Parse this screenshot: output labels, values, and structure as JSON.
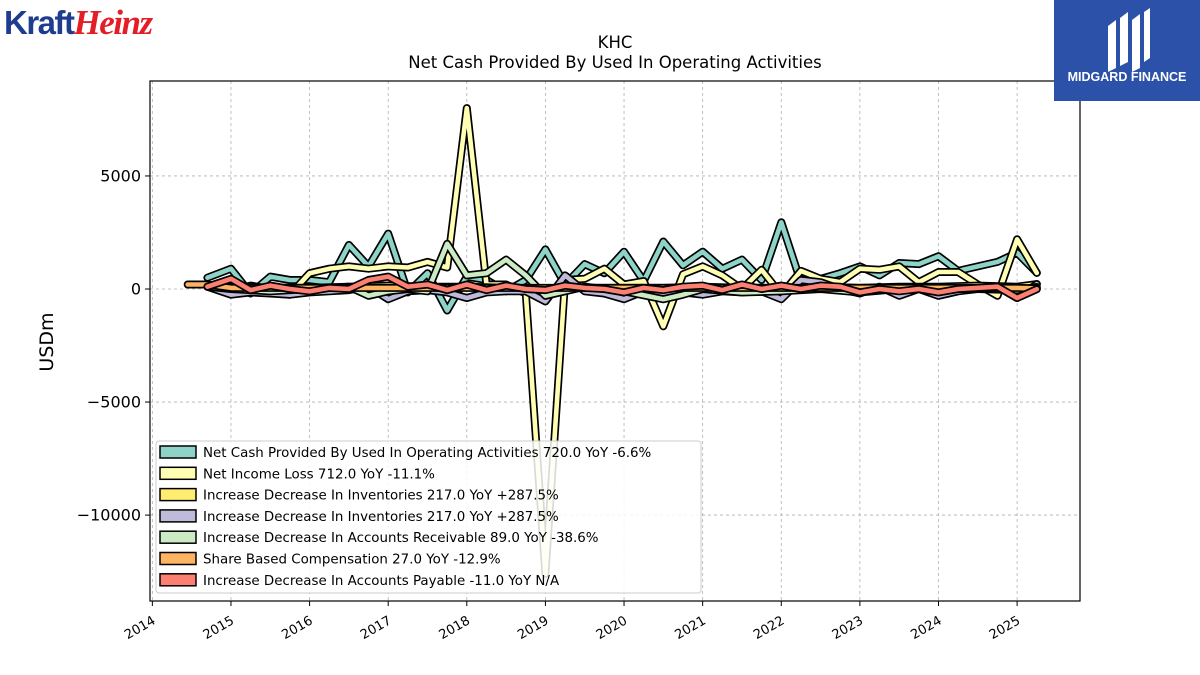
{
  "logos": {
    "left": {
      "part1": "Kraft",
      "part2": "Heinz"
    },
    "right": {
      "name": "MIDGARD FINANCE"
    }
  },
  "colors": {
    "kraft_blue": "#1e3d8f",
    "heinz_red": "#e41e26",
    "midgard_blue": "#2b52a8"
  },
  "chart_data": {
    "type": "line",
    "title": "KHC",
    "subtitle": "Net Cash Provided By Used In Operating Activities",
    "xlabel": "",
    "ylabel": "USDm",
    "xlim": [
      2013.97,
      2025.8
    ],
    "ylim": [
      -13800,
      9200
    ],
    "yticks": [
      -10000,
      -5000,
      0,
      5000
    ],
    "ytick_labels": [
      "−10000",
      "−5000",
      "0",
      "5000"
    ],
    "xticks": [
      2014,
      2015,
      2016,
      2017,
      2018,
      2019,
      2020,
      2021,
      2022,
      2023,
      2024,
      2025
    ],
    "xtick_labels": [
      "2014",
      "2015",
      "2016",
      "2017",
      "2018",
      "2019",
      "2020",
      "2021",
      "2022",
      "2023",
      "2024",
      "2025"
    ],
    "grid": true,
    "legend_position": "lower-left",
    "series": [
      {
        "name": "Net Cash Provided By Used In Operating Activities",
        "legend": "Net Cash Provided By Used In Operating Activities  720.0 YoY -6.6%",
        "color": "#8dd3c7",
        "points": [
          [
            2014.7,
            500
          ],
          [
            2015.0,
            900
          ],
          [
            2015.25,
            -200
          ],
          [
            2015.5,
            550
          ],
          [
            2015.75,
            400
          ],
          [
            2016.0,
            400
          ],
          [
            2016.25,
            300
          ],
          [
            2016.5,
            1950
          ],
          [
            2016.75,
            1000
          ],
          [
            2017.0,
            2450
          ],
          [
            2017.25,
            -150
          ],
          [
            2017.5,
            700
          ],
          [
            2017.75,
            -950
          ],
          [
            2018.0,
            550
          ],
          [
            2018.25,
            400
          ],
          [
            2018.5,
            -100
          ],
          [
            2018.75,
            400
          ],
          [
            2019.0,
            1750
          ],
          [
            2019.25,
            200
          ],
          [
            2019.5,
            1100
          ],
          [
            2019.75,
            700
          ],
          [
            2020.0,
            1650
          ],
          [
            2020.25,
            350
          ],
          [
            2020.5,
            2100
          ],
          [
            2020.75,
            1050
          ],
          [
            2021.0,
            1650
          ],
          [
            2021.25,
            900
          ],
          [
            2021.5,
            1300
          ],
          [
            2021.75,
            400
          ],
          [
            2022.0,
            2950
          ],
          [
            2022.25,
            300
          ],
          [
            2022.5,
            450
          ],
          [
            2022.75,
            700
          ],
          [
            2023.0,
            1000
          ],
          [
            2023.25,
            600
          ],
          [
            2023.5,
            1150
          ],
          [
            2023.75,
            1100
          ],
          [
            2024.0,
            1450
          ],
          [
            2024.25,
            800
          ],
          [
            2024.75,
            1200
          ],
          [
            2025.0,
            1600
          ],
          [
            2025.25,
            720
          ]
        ]
      },
      {
        "name": "Net Income Loss",
        "legend": "Net Income Loss  712.0 YoY -11.1%",
        "color": "#ffffb3",
        "points": [
          [
            2015.0,
            -100
          ],
          [
            2015.25,
            150
          ],
          [
            2015.5,
            0
          ],
          [
            2015.75,
            -250
          ],
          [
            2016.0,
            700
          ],
          [
            2016.25,
            900
          ],
          [
            2016.5,
            1000
          ],
          [
            2016.75,
            900
          ],
          [
            2017.0,
            1000
          ],
          [
            2017.25,
            950
          ],
          [
            2017.5,
            1200
          ],
          [
            2017.75,
            950
          ],
          [
            2018.0,
            8000
          ],
          [
            2018.25,
            200
          ],
          [
            2018.5,
            200
          ],
          [
            2018.75,
            -200
          ],
          [
            2019.0,
            -12600
          ],
          [
            2019.25,
            400
          ],
          [
            2019.5,
            450
          ],
          [
            2019.75,
            900
          ],
          [
            2020.0,
            200
          ],
          [
            2020.25,
            350
          ],
          [
            2020.5,
            -1650
          ],
          [
            2020.75,
            650
          ],
          [
            2021.0,
            1000
          ],
          [
            2021.25,
            600
          ],
          [
            2021.5,
            0
          ],
          [
            2021.75,
            850
          ],
          [
            2022.0,
            -250
          ],
          [
            2022.25,
            800
          ],
          [
            2022.5,
            450
          ],
          [
            2022.75,
            300
          ],
          [
            2023.0,
            900
          ],
          [
            2023.25,
            850
          ],
          [
            2023.5,
            1000
          ],
          [
            2023.75,
            300
          ],
          [
            2024.0,
            750
          ],
          [
            2024.25,
            750
          ],
          [
            2024.5,
            200
          ],
          [
            2024.75,
            -300
          ],
          [
            2025.0,
            2200
          ],
          [
            2025.25,
            712
          ]
        ]
      },
      {
        "name": "Increase Decrease In Inventories",
        "legend": "Increase Decrease In Inventories  217.0 YoY +287.5%",
        "color": "#ffed6f",
        "points": [
          [
            2014.7,
            150
          ],
          [
            2015.0,
            100
          ],
          [
            2015.5,
            50
          ],
          [
            2016.0,
            50
          ],
          [
            2016.5,
            100
          ],
          [
            2017.0,
            150
          ],
          [
            2017.5,
            100
          ],
          [
            2018.0,
            100
          ],
          [
            2018.5,
            50
          ],
          [
            2019.0,
            0
          ],
          [
            2019.5,
            50
          ],
          [
            2020.0,
            50
          ],
          [
            2020.5,
            50
          ],
          [
            2021.0,
            100
          ],
          [
            2021.5,
            50
          ],
          [
            2022.0,
            50
          ],
          [
            2022.5,
            100
          ],
          [
            2023.0,
            50
          ],
          [
            2023.5,
            100
          ],
          [
            2024.0,
            100
          ],
          [
            2024.5,
            150
          ],
          [
            2025.0,
            100
          ],
          [
            2025.25,
            217
          ]
        ]
      },
      {
        "name": "Increase Decrease In Inventories",
        "legend": "Increase Decrease In Inventories  217.0 YoY +287.5%",
        "color": "#bebada",
        "points": [
          [
            2014.7,
            100
          ],
          [
            2015.0,
            -250
          ],
          [
            2015.25,
            -150
          ],
          [
            2015.5,
            -200
          ],
          [
            2015.75,
            -250
          ],
          [
            2016.0,
            -150
          ],
          [
            2016.25,
            -100
          ],
          [
            2016.5,
            -50
          ],
          [
            2016.75,
            100
          ],
          [
            2017.0,
            -450
          ],
          [
            2017.25,
            -100
          ],
          [
            2017.5,
            -50
          ],
          [
            2017.75,
            -150
          ],
          [
            2018.0,
            -400
          ],
          [
            2018.25,
            -150
          ],
          [
            2018.5,
            -100
          ],
          [
            2018.75,
            -100
          ],
          [
            2019.0,
            -550
          ],
          [
            2019.25,
            600
          ],
          [
            2019.5,
            -100
          ],
          [
            2019.75,
            -200
          ],
          [
            2020.0,
            -450
          ],
          [
            2020.25,
            -100
          ],
          [
            2020.5,
            -250
          ],
          [
            2020.75,
            -150
          ],
          [
            2021.0,
            -250
          ],
          [
            2021.25,
            -100
          ],
          [
            2021.5,
            -150
          ],
          [
            2021.75,
            -100
          ],
          [
            2022.0,
            -450
          ],
          [
            2022.25,
            400
          ],
          [
            2022.5,
            300
          ],
          [
            2022.75,
            0
          ],
          [
            2023.0,
            -200
          ],
          [
            2023.25,
            100
          ],
          [
            2023.5,
            -300
          ],
          [
            2023.75,
            0
          ],
          [
            2024.0,
            -300
          ],
          [
            2024.25,
            -100
          ],
          [
            2024.75,
            100
          ],
          [
            2025.0,
            -400
          ],
          [
            2025.25,
            217
          ]
        ]
      },
      {
        "name": "Increase Decrease In Accounts Receivable",
        "legend": "Increase Decrease In Accounts Receivable  89.0 YoY -38.6%",
        "color": "#ccebc5",
        "points": [
          [
            2014.7,
            100
          ],
          [
            2015.0,
            0
          ],
          [
            2015.5,
            -100
          ],
          [
            2016.0,
            0
          ],
          [
            2016.5,
            100
          ],
          [
            2016.75,
            -300
          ],
          [
            2017.0,
            -100
          ],
          [
            2017.25,
            0
          ],
          [
            2017.5,
            -100
          ],
          [
            2017.75,
            2000
          ],
          [
            2018.0,
            600
          ],
          [
            2018.25,
            700
          ],
          [
            2018.5,
            1300
          ],
          [
            2018.75,
            600
          ],
          [
            2019.0,
            -300
          ],
          [
            2019.5,
            100
          ],
          [
            2020.0,
            -100
          ],
          [
            2020.5,
            -450
          ],
          [
            2020.75,
            -250
          ],
          [
            2021.0,
            0
          ],
          [
            2021.5,
            -150
          ],
          [
            2022.0,
            -100
          ],
          [
            2022.5,
            0
          ],
          [
            2023.0,
            -150
          ],
          [
            2023.5,
            0
          ],
          [
            2024.0,
            0
          ],
          [
            2024.5,
            0
          ],
          [
            2025.0,
            -50
          ],
          [
            2025.25,
            89
          ]
        ]
      },
      {
        "name": "Share Based Compensation",
        "legend": "Share Based Compensation  27.0 YoY -12.9%",
        "color": "#fdb462",
        "points": [
          [
            2014.45,
            200
          ],
          [
            2014.7,
            200
          ],
          [
            2015.0,
            50
          ],
          [
            2015.5,
            50
          ],
          [
            2016.0,
            50
          ],
          [
            2016.5,
            50
          ],
          [
            2017.0,
            50
          ],
          [
            2017.5,
            50
          ],
          [
            2018.0,
            50
          ],
          [
            2018.5,
            50
          ],
          [
            2019.0,
            50
          ],
          [
            2019.5,
            50
          ],
          [
            2020.0,
            50
          ],
          [
            2020.5,
            50
          ],
          [
            2021.0,
            50
          ],
          [
            2021.5,
            50
          ],
          [
            2022.0,
            50
          ],
          [
            2022.5,
            50
          ],
          [
            2023.0,
            50
          ],
          [
            2023.5,
            50
          ],
          [
            2024.0,
            50
          ],
          [
            2024.5,
            50
          ],
          [
            2025.0,
            50
          ],
          [
            2025.25,
            27
          ]
        ]
      },
      {
        "name": "Increase Decrease In Accounts Payable",
        "legend": "Increase Decrease In Accounts Payable  -11.0 YoY N/A",
        "color": "#fb8072",
        "points": [
          [
            2014.7,
            100
          ],
          [
            2015.0,
            450
          ],
          [
            2015.25,
            -50
          ],
          [
            2015.5,
            150
          ],
          [
            2015.75,
            0
          ],
          [
            2016.0,
            -100
          ],
          [
            2016.25,
            50
          ],
          [
            2016.5,
            0
          ],
          [
            2016.75,
            400
          ],
          [
            2017.0,
            550
          ],
          [
            2017.25,
            100
          ],
          [
            2017.5,
            200
          ],
          [
            2017.75,
            -50
          ],
          [
            2018.0,
            200
          ],
          [
            2018.25,
            -50
          ],
          [
            2018.5,
            150
          ],
          [
            2018.75,
            0
          ],
          [
            2019.0,
            -50
          ],
          [
            2019.25,
            150
          ],
          [
            2019.5,
            50
          ],
          [
            2019.75,
            0
          ],
          [
            2020.0,
            -150
          ],
          [
            2020.25,
            50
          ],
          [
            2020.5,
            -50
          ],
          [
            2020.75,
            100
          ],
          [
            2021.0,
            150
          ],
          [
            2021.25,
            -50
          ],
          [
            2021.5,
            200
          ],
          [
            2021.75,
            0
          ],
          [
            2022.0,
            150
          ],
          [
            2022.25,
            0
          ],
          [
            2022.5,
            150
          ],
          [
            2022.75,
            100
          ],
          [
            2023.0,
            -150
          ],
          [
            2023.25,
            0
          ],
          [
            2023.5,
            -100
          ],
          [
            2023.75,
            0
          ],
          [
            2024.0,
            -150
          ],
          [
            2024.25,
            0
          ],
          [
            2024.75,
            100
          ],
          [
            2025.0,
            -400
          ],
          [
            2025.25,
            -11
          ]
        ]
      }
    ]
  }
}
